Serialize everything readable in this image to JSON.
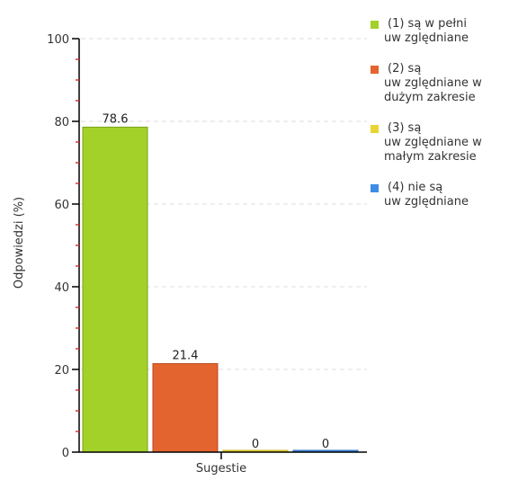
{
  "chart_data": {
    "type": "bar",
    "title": "",
    "xlabel": "Sugestie",
    "ylabel": "Odpowiedzi (%)",
    "ylim": [
      0,
      100
    ],
    "yticks": [
      0,
      20,
      40,
      60,
      80,
      100
    ],
    "ytick_labels": [
      "0",
      "20",
      "40",
      "60",
      "80",
      "100"
    ],
    "grid": "horizontal dashed",
    "legend_position": "right",
    "series": [
      {
        "label_lines": [
          "(1) są w pełni",
          "uw zględniane"
        ],
        "value": 78.6,
        "value_label": "78.6",
        "color": "#a3d12a",
        "stroke": "#7aa21a"
      },
      {
        "label_lines": [
          "(2) są",
          "uw zględniane w",
          "dużym zakresie"
        ],
        "value": 21.4,
        "value_label": "21.4",
        "color": "#e3642e",
        "stroke": "#b8491c"
      },
      {
        "label_lines": [
          "(3) są",
          "uw zględniane w",
          "małym zakresie"
        ],
        "value": 0,
        "value_label": "0",
        "color": "#e8d533",
        "stroke": "#c9b51b"
      },
      {
        "label_lines": [
          "(4) nie są",
          "uw zględniane"
        ],
        "value": 0,
        "value_label": "0",
        "color": "#3d8de8",
        "stroke": "#2a6bbd"
      }
    ]
  }
}
